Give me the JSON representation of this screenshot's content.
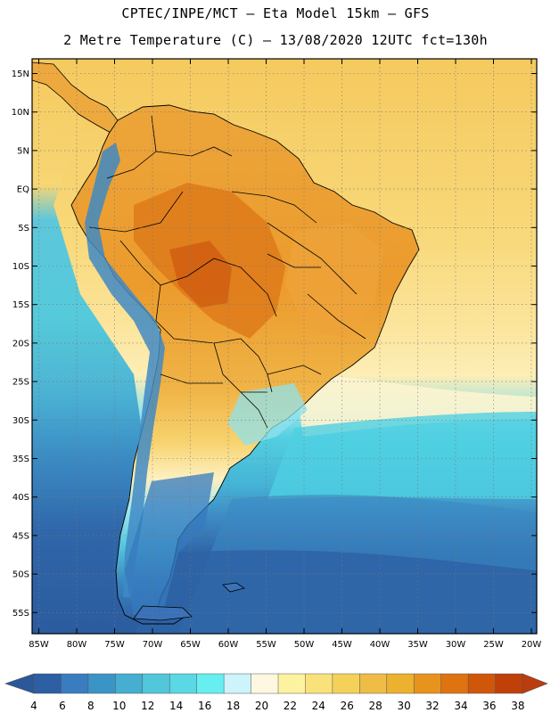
{
  "title_line1": "CPTEC/INPE/MCT –  Eta Model 15km – GFS",
  "title_line2": "2 Metre Temperature (C) – 13/08/2020 12UTC fct=130h",
  "lat_labels": [
    "15N",
    "10N",
    "5N",
    "EQ",
    "5S",
    "10S",
    "15S",
    "20S",
    "25S",
    "30S",
    "35S",
    "40S",
    "45S",
    "50S",
    "55S"
  ],
  "lon_labels": [
    "85W",
    "80W",
    "75W",
    "70W",
    "65W",
    "60W",
    "55W",
    "50W",
    "45W",
    "40W",
    "35W",
    "30W",
    "25W",
    "20W"
  ],
  "colorbar": {
    "values": [
      "4",
      "6",
      "8",
      "10",
      "12",
      "14",
      "16",
      "18",
      "20",
      "22",
      "24",
      "26",
      "28",
      "30",
      "32",
      "34",
      "36",
      "38"
    ],
    "colors": [
      "#2c5fa3",
      "#3a7cc0",
      "#3b94c6",
      "#45aed1",
      "#52c6da",
      "#5ad8e3",
      "#66eef0",
      "#cdf3fb",
      "#fff8e0",
      "#fdf2a0",
      "#f9e27a",
      "#f4d25a",
      "#efbd45",
      "#ecb12e",
      "#e8931e",
      "#df7311",
      "#d0560a",
      "#c04009"
    ],
    "below_color": "#2a5898",
    "above_color": "#bb3c0c"
  },
  "colors": {
    "ocean_north": "#f7d26d",
    "ocean_mid": "#fde9a3",
    "ocean_cyan": "#4fd3e2",
    "ocean_south": "#2f63a7",
    "land_warm": "#ee9b2a",
    "land_hot": "#d86a14",
    "andes_cold": "#3d8ec6"
  }
}
